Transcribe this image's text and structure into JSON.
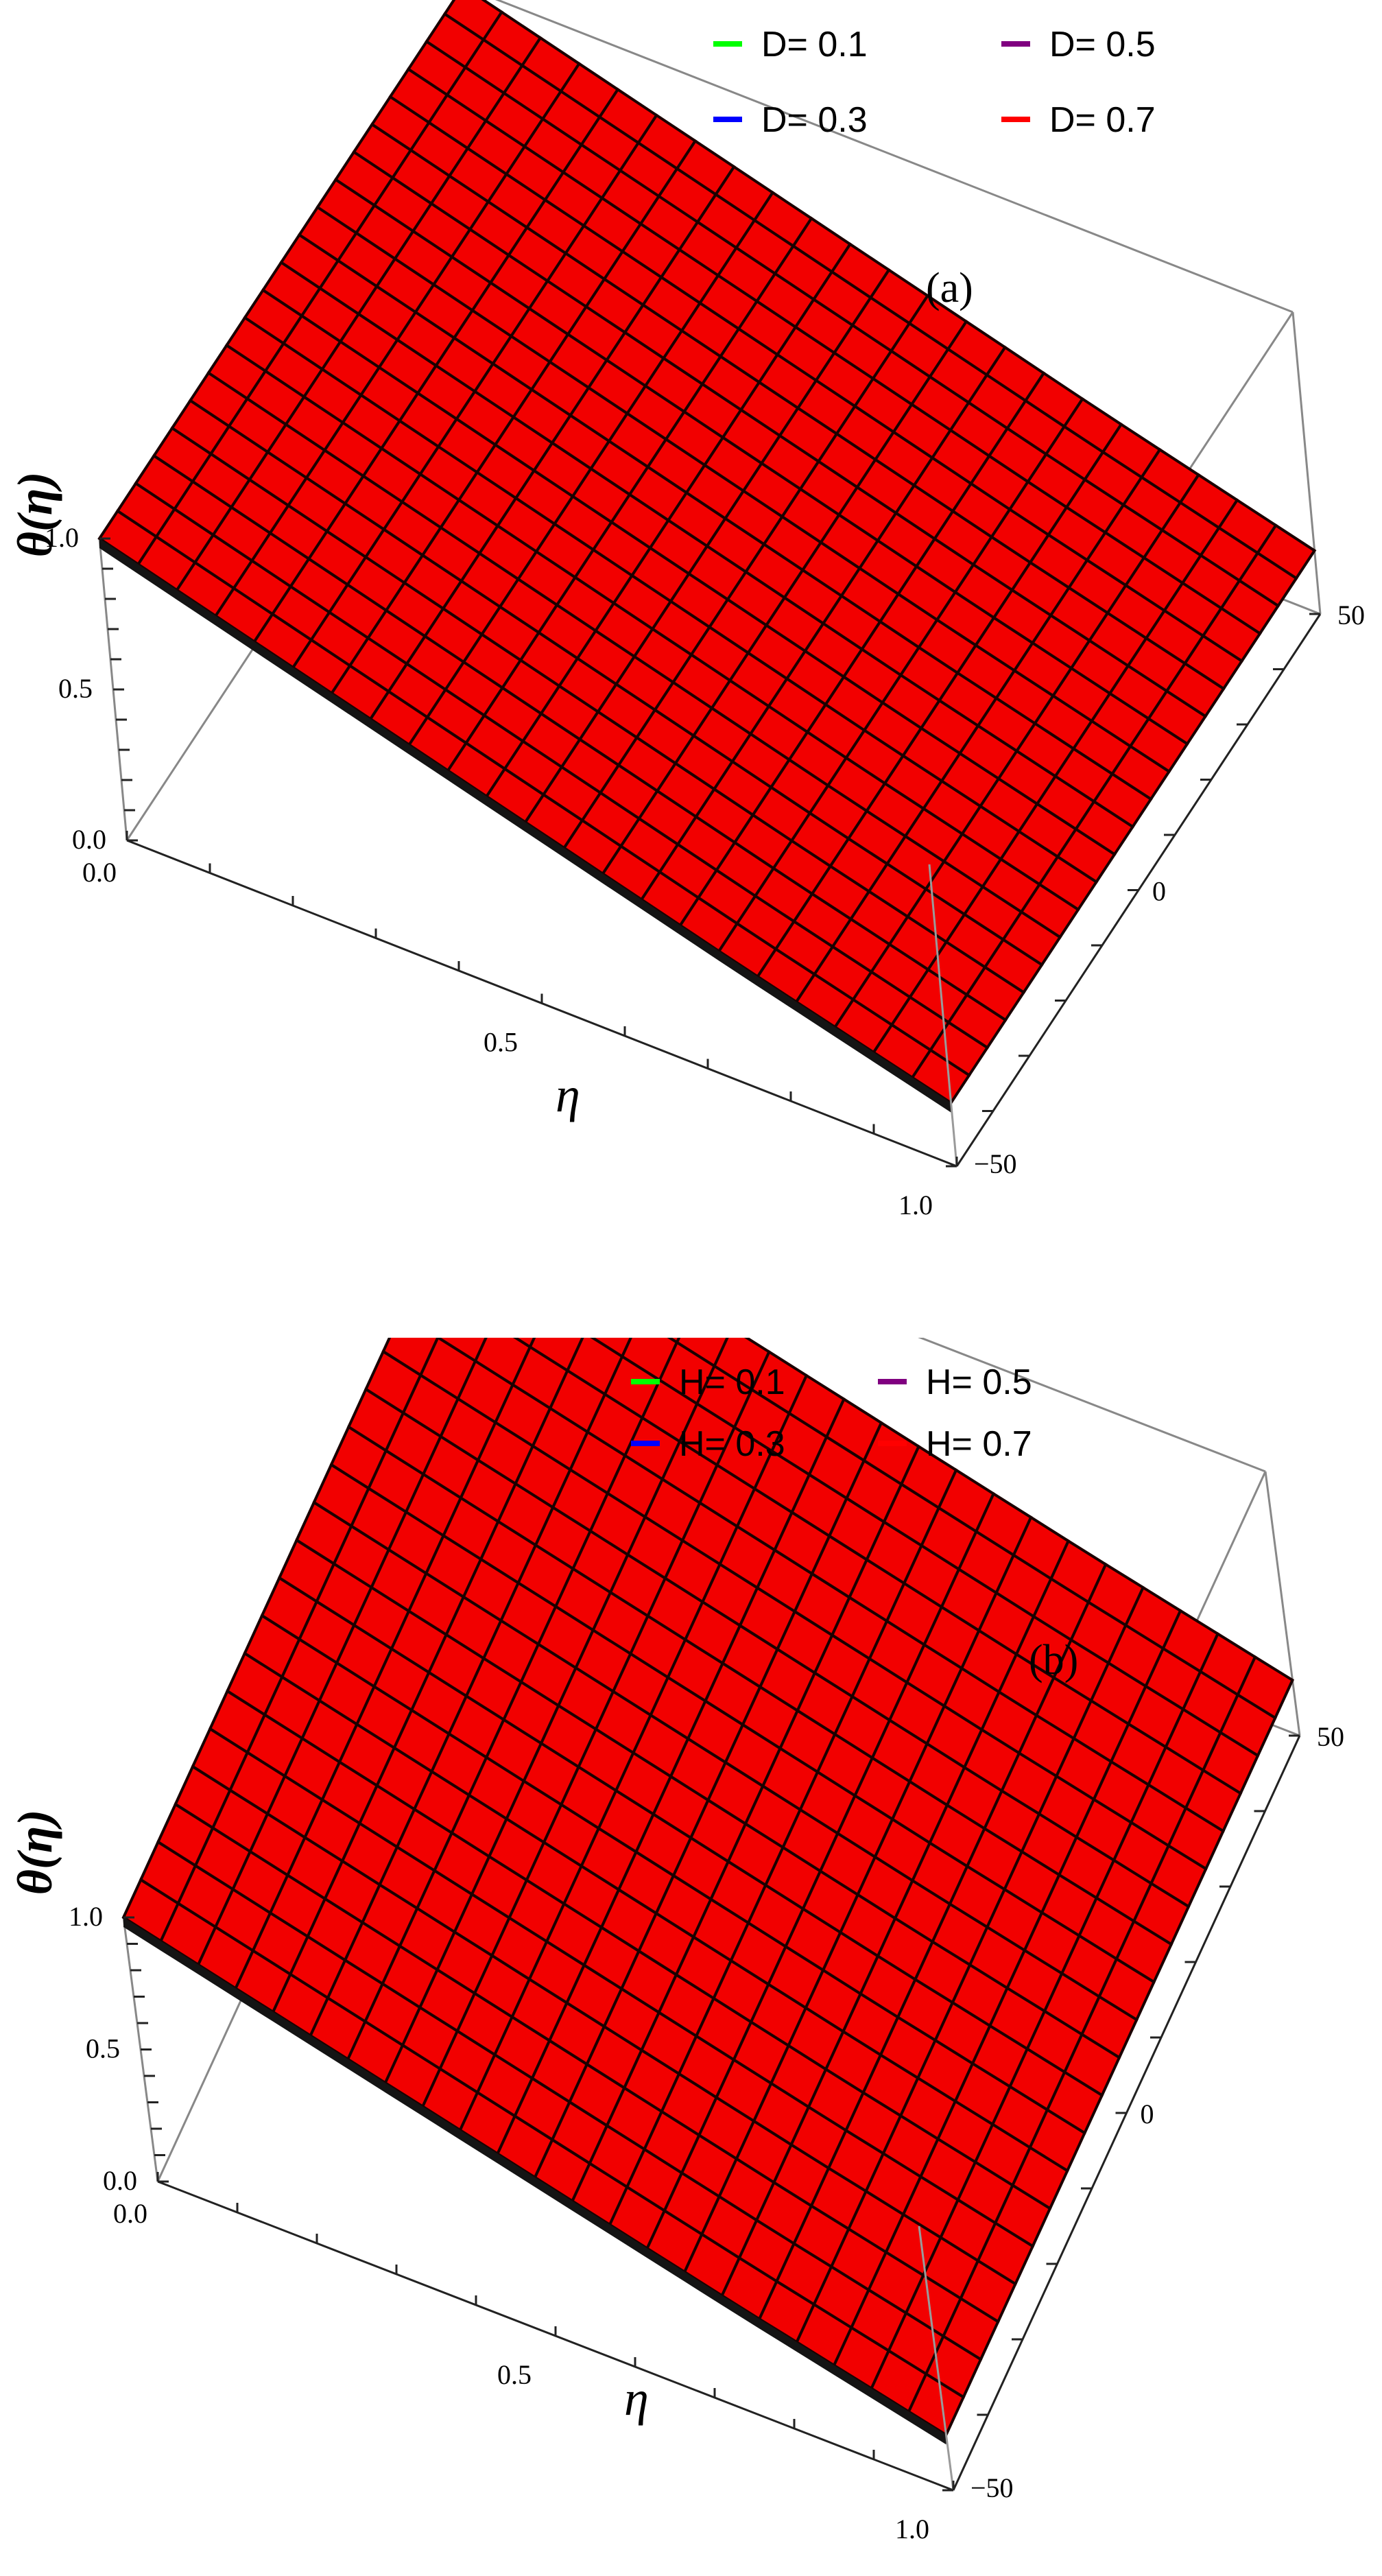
{
  "chart_data": [
    {
      "panel": "(a)",
      "type": "surface",
      "xlabel": "η",
      "ylabel": "θ(η)",
      "x_ticks": [
        "0.0",
        "0.5",
        "1.0"
      ],
      "z_ticks": [
        "0.0",
        "0.5",
        "1.0"
      ],
      "y_ticks": [
        "−50",
        "0",
        "50"
      ],
      "xlim": [
        0,
        1
      ],
      "zlim": [
        0,
        1
      ],
      "ylim": [
        -50,
        50
      ],
      "legend": [
        {
          "label": "D= 0.1",
          "color": "#00ff00"
        },
        {
          "label": "D= 0.5",
          "color": "#800080"
        },
        {
          "label": "D= 0.3",
          "color": "#0000ff"
        },
        {
          "label": "D= 0.7",
          "color": "#ff0000"
        }
      ],
      "series": [
        {
          "name": "D= 0.1",
          "color": "#00ff00",
          "x": [
            0,
            0.25,
            0.5,
            0.75,
            1.0
          ],
          "values": [
            1.0,
            0.78,
            0.57,
            0.37,
            0.18
          ]
        },
        {
          "name": "D= 0.3",
          "color": "#0000ff",
          "x": [
            0,
            0.25,
            0.5,
            0.75,
            1.0
          ],
          "values": [
            1.0,
            0.78,
            0.58,
            0.38,
            0.19
          ]
        },
        {
          "name": "D= 0.5",
          "color": "#800080",
          "x": [
            0,
            0.25,
            0.5,
            0.75,
            1.0
          ],
          "values": [
            1.0,
            0.79,
            0.59,
            0.39,
            0.2
          ]
        },
        {
          "name": "D= 0.7",
          "color": "#ff0000",
          "x": [
            0,
            0.25,
            0.5,
            0.75,
            1.0
          ],
          "values": [
            1.0,
            0.8,
            0.6,
            0.4,
            0.21
          ]
        }
      ]
    },
    {
      "panel": "(b)",
      "type": "surface",
      "xlabel": "η",
      "ylabel": "θ(η)",
      "x_ticks": [
        "0.0",
        "0.5",
        "1.0"
      ],
      "z_ticks": [
        "0.0",
        "0.5",
        "1.0"
      ],
      "y_ticks": [
        "−50",
        "0",
        "50"
      ],
      "xlim": [
        0,
        1
      ],
      "zlim": [
        0,
        1
      ],
      "ylim": [
        -50,
        50
      ],
      "legend": [
        {
          "label": "H= 0.1",
          "color": "#00ff00"
        },
        {
          "label": "H= 0.5",
          "color": "#800080"
        },
        {
          "label": "H= 0.3",
          "color": "#0000ff"
        },
        {
          "label": "H= 0.7",
          "color": "#ff0000"
        }
      ],
      "series": [
        {
          "name": "H= 0.1",
          "color": "#00ff00",
          "x": [
            0,
            0.25,
            0.5,
            0.75,
            1.0
          ],
          "values": [
            1.0,
            0.78,
            0.57,
            0.37,
            0.18
          ]
        },
        {
          "name": "H= 0.3",
          "color": "#0000ff",
          "x": [
            0,
            0.25,
            0.5,
            0.75,
            1.0
          ],
          "values": [
            1.0,
            0.78,
            0.58,
            0.38,
            0.19
          ]
        },
        {
          "name": "H= 0.5",
          "color": "#800080",
          "x": [
            0,
            0.25,
            0.5,
            0.75,
            1.0
          ],
          "values": [
            1.0,
            0.79,
            0.59,
            0.39,
            0.2
          ]
        },
        {
          "name": "H= 0.7",
          "color": "#ff0000",
          "x": [
            0,
            0.25,
            0.5,
            0.75,
            1.0
          ],
          "values": [
            1.0,
            0.8,
            0.6,
            0.4,
            0.21
          ]
        }
      ]
    }
  ]
}
